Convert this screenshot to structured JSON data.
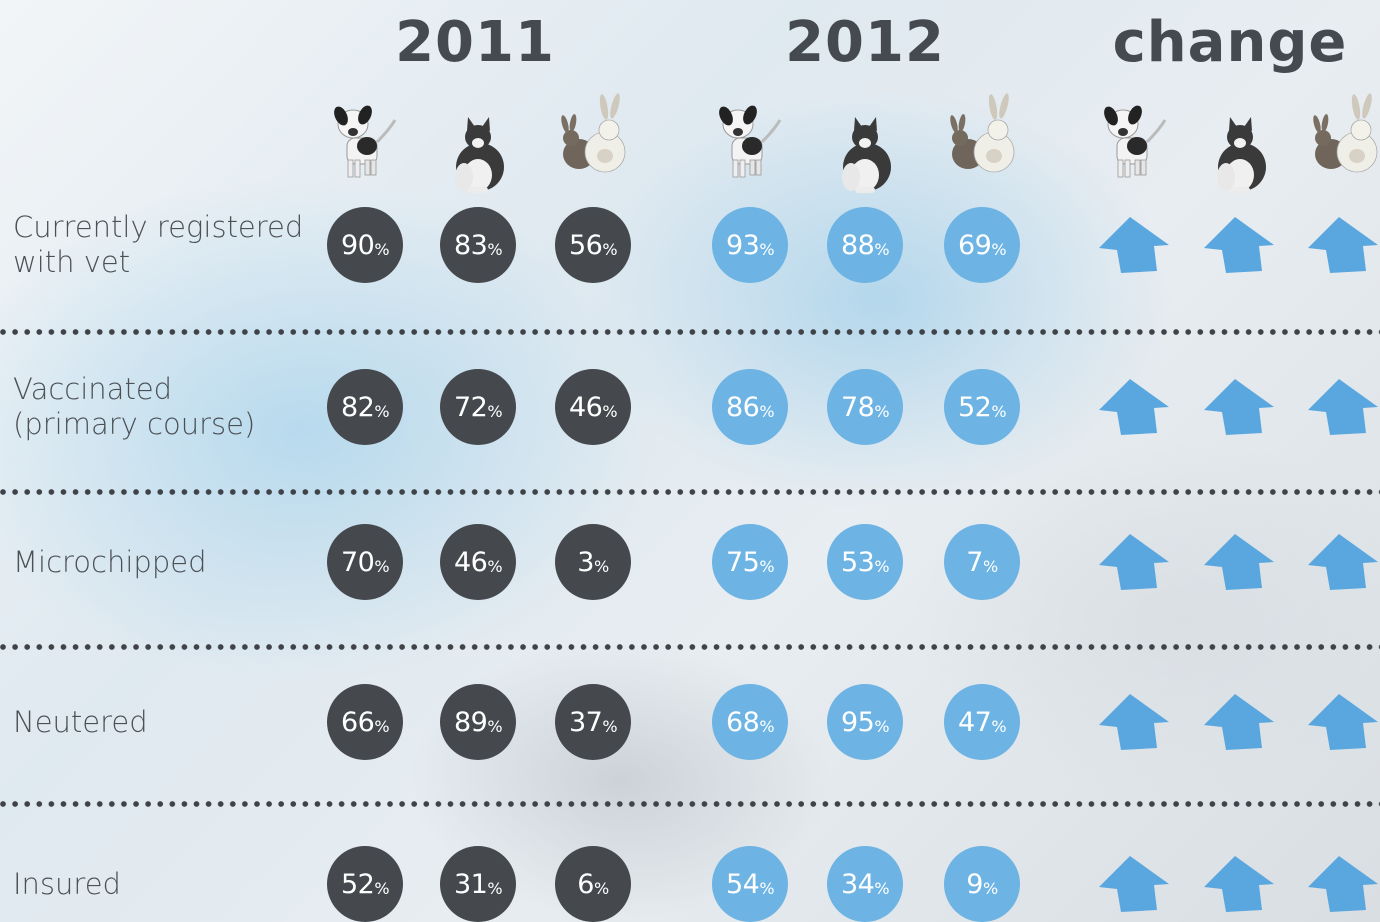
{
  "headers": {
    "year1": "2011",
    "year2": "2012",
    "change": "change"
  },
  "animals": [
    "dog",
    "cat",
    "rabbits"
  ],
  "colors": {
    "year1": "#45494e",
    "year2": "#6db3e3",
    "arrow": "#5aa7df",
    "text": "#4b5055"
  },
  "chart_data": {
    "type": "table",
    "columns": [
      "2011 dog",
      "2011 cat",
      "2011 rabbits",
      "2012 dog",
      "2012 cat",
      "2012 rabbits"
    ],
    "rows": [
      {
        "label": [
          "Currently registered",
          "with vet"
        ],
        "v2011": [
          90,
          83,
          56
        ],
        "v2012": [
          93,
          88,
          69
        ],
        "change": [
          "up",
          "up",
          "up"
        ]
      },
      {
        "label": [
          "Vaccinated",
          "(primary course)"
        ],
        "v2011": [
          82,
          72,
          46
        ],
        "v2012": [
          86,
          78,
          52
        ],
        "change": [
          "up",
          "up",
          "up"
        ]
      },
      {
        "label": [
          "Microchipped"
        ],
        "v2011": [
          70,
          46,
          3
        ],
        "v2012": [
          75,
          53,
          7
        ],
        "change": [
          "up",
          "up",
          "up"
        ]
      },
      {
        "label": [
          "Neutered"
        ],
        "v2011": [
          66,
          89,
          37
        ],
        "v2012": [
          68,
          95,
          47
        ],
        "change": [
          "up",
          "up",
          "up"
        ]
      },
      {
        "label": [
          "Insured"
        ],
        "v2011": [
          52,
          31,
          6
        ],
        "v2012": [
          54,
          34,
          9
        ],
        "change": [
          "up",
          "up",
          "up"
        ]
      }
    ]
  }
}
